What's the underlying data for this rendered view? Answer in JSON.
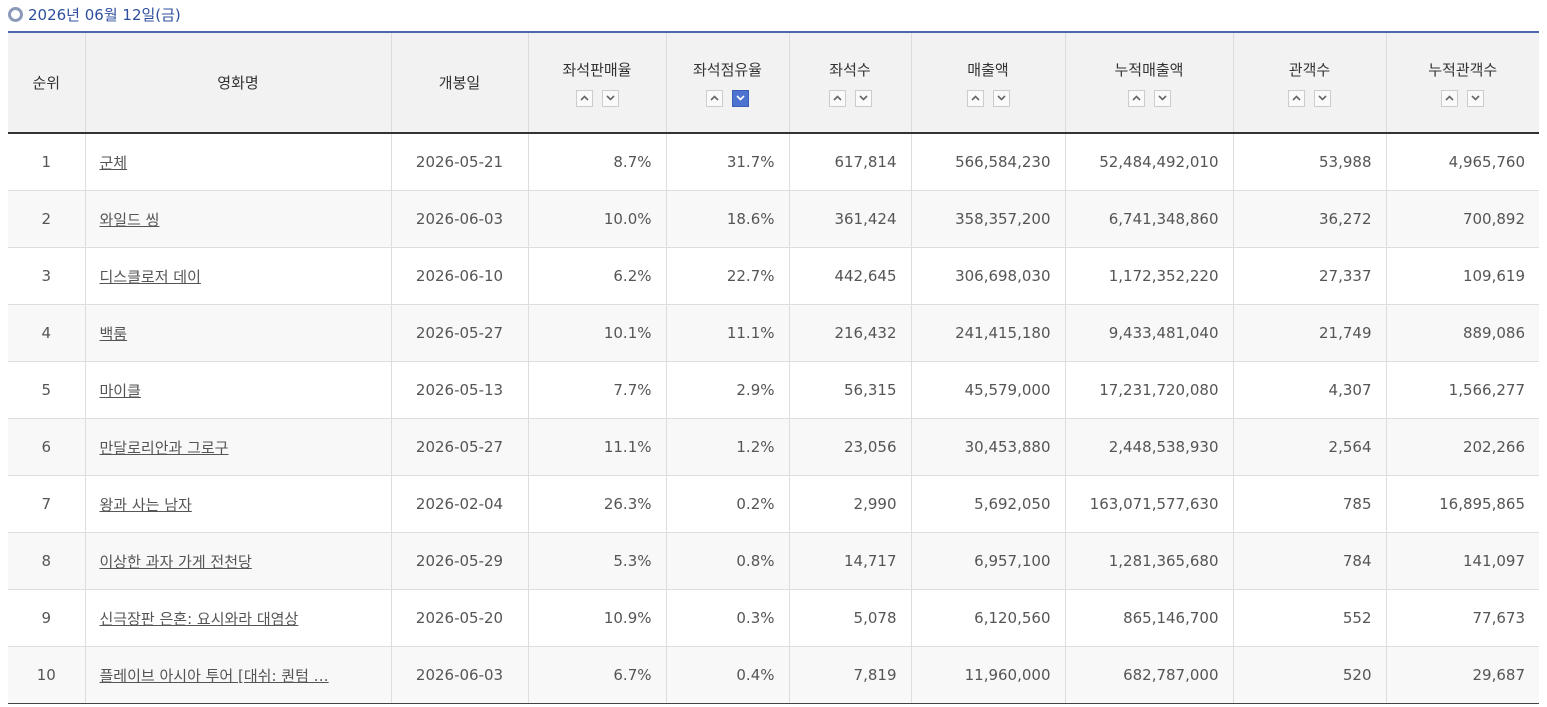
{
  "header": {
    "title": "2026년 06월 12일(금)"
  },
  "table": {
    "headers": [
      "순위",
      "영화명",
      "개봉일",
      "좌석판매율",
      "좌석점유율",
      "좌석수",
      "매출액",
      "누적매출액",
      "관객수",
      "누적관객수"
    ],
    "rows": [
      [
        "1",
        "군체",
        "2026-05-21",
        "8.7%",
        "31.7%",
        "617,814",
        "566,584,230",
        "52,484,492,010",
        "53,988",
        "4,965,760"
      ],
      [
        "2",
        "와일드 씽",
        "2026-06-03",
        "10.0%",
        "18.6%",
        "361,424",
        "358,357,200",
        "6,741,348,860",
        "36,272",
        "700,892"
      ],
      [
        "3",
        "디스클로저 데이",
        "2026-06-10",
        "6.2%",
        "22.7%",
        "442,645",
        "306,698,030",
        "1,172,352,220",
        "27,337",
        "109,619"
      ],
      [
        "4",
        "백룸",
        "2026-05-27",
        "10.1%",
        "11.1%",
        "216,432",
        "241,415,180",
        "9,433,481,040",
        "21,749",
        "889,086"
      ],
      [
        "5",
        "마이클",
        "2026-05-13",
        "7.7%",
        "2.9%",
        "56,315",
        "45,579,000",
        "17,231,720,080",
        "4,307",
        "1,566,277"
      ],
      [
        "6",
        "만달로리안과 그로구",
        "2026-05-27",
        "11.1%",
        "1.2%",
        "23,056",
        "30,453,880",
        "2,448,538,930",
        "2,564",
        "202,266"
      ],
      [
        "7",
        "왕과 사는 남자",
        "2026-02-04",
        "26.3%",
        "0.2%",
        "2,990",
        "5,692,050",
        "163,071,577,630",
        "785",
        "16,895,865"
      ],
      [
        "8",
        "이상한 과자 가게 전천당",
        "2026-05-29",
        "5.3%",
        "0.8%",
        "14,717",
        "6,957,100",
        "1,281,365,680",
        "784",
        "141,097"
      ],
      [
        "9",
        "신극장판 은혼: 요시와라 대염상",
        "2026-05-20",
        "10.9%",
        "0.3%",
        "5,078",
        "6,120,560",
        "865,146,700",
        "552",
        "77,673"
      ],
      [
        "10",
        "플레이브 아시아 투어 [대쉬: 퀀텀 …",
        "2026-06-03",
        "6.7%",
        "0.4%",
        "7,819",
        "11,960,000",
        "682,787,000",
        "520",
        "29,687"
      ]
    ]
  }
}
